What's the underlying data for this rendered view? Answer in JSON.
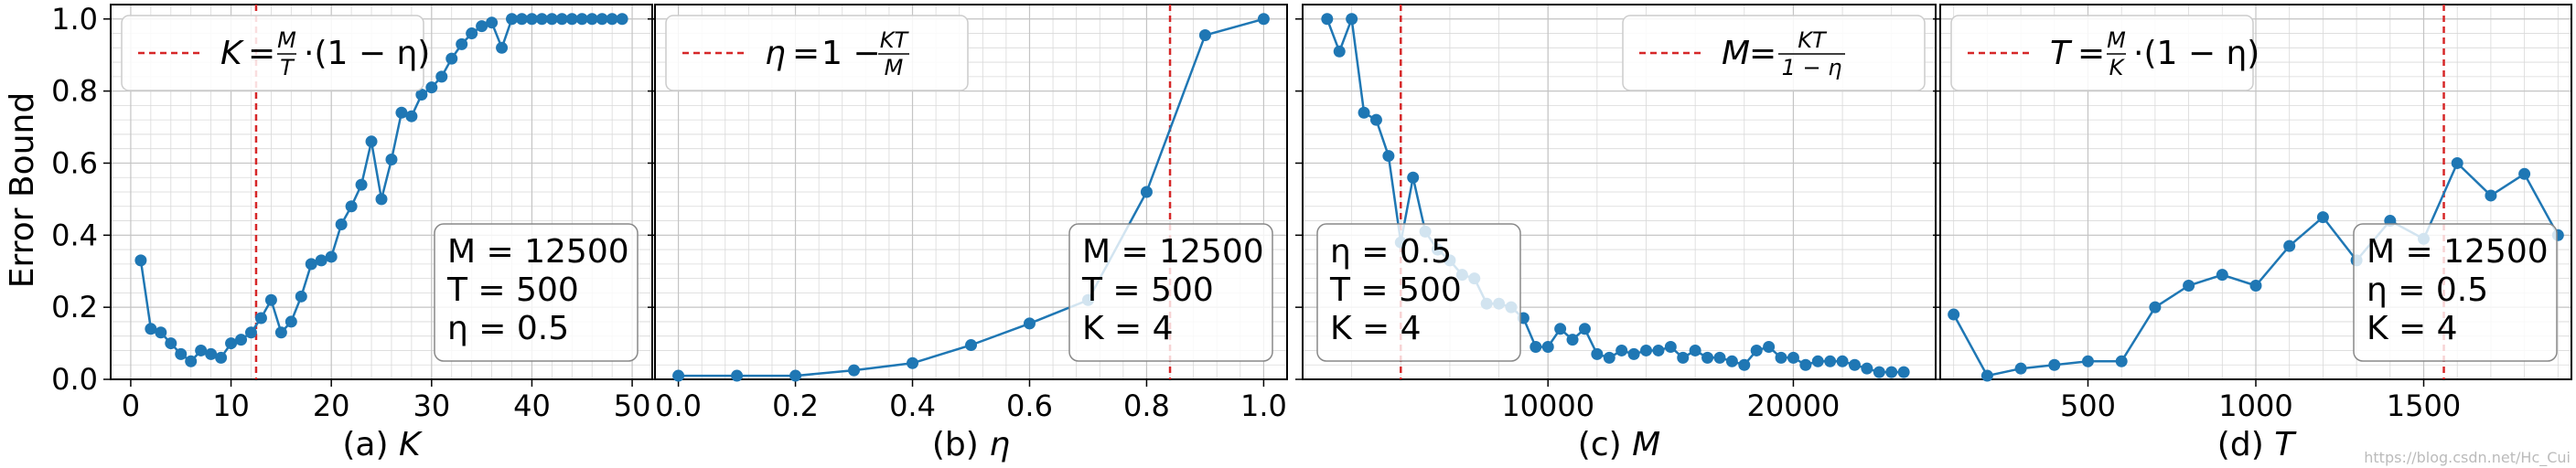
{
  "ylabel": "Error Bound",
  "watermark": "https://blog.csdn.net/Hc_Cui",
  "colors": {
    "line": "#1f77b4",
    "marker": "#1f77b4",
    "marker_alt": "#8fb9dd",
    "ref": "#d62728",
    "grid": "#d9d9d9",
    "axes": "#000000"
  },
  "chart_data": [
    {
      "type": "line",
      "xlabel_prefix": "(a)",
      "xlabel_var": "K",
      "xlim": [
        -2,
        52
      ],
      "ylim": [
        0,
        1.04
      ],
      "xticks": [
        0,
        10,
        20,
        30,
        40,
        50
      ],
      "yticks": [
        0.0,
        0.2,
        0.4,
        0.6,
        0.8,
        1.0
      ],
      "ytick_labels": [
        "0.0",
        "0.2",
        "0.4",
        "0.6",
        "0.8",
        "1.0"
      ],
      "vline": 12.5,
      "legend": {
        "position": "top-left",
        "lhs": "K",
        "rhs_before": "·(1 − η)",
        "frac_num": "M",
        "frac_den": "T"
      },
      "textbox": {
        "position": "bottom-right",
        "lines": [
          "M = 12500",
          "T = 500",
          "η = 0.5"
        ]
      },
      "x": [
        1,
        2,
        3,
        4,
        5,
        6,
        7,
        8,
        9,
        10,
        11,
        12,
        13,
        14,
        15,
        16,
        17,
        18,
        19,
        20,
        21,
        22,
        23,
        24,
        25,
        26,
        27,
        28,
        29,
        30,
        31,
        32,
        33,
        34,
        35,
        36,
        37,
        38,
        39,
        40,
        41,
        42,
        43,
        44,
        45,
        46,
        47,
        48,
        49
      ],
      "y": [
        0.33,
        0.14,
        0.13,
        0.1,
        0.07,
        0.05,
        0.08,
        0.07,
        0.06,
        0.1,
        0.11,
        0.13,
        0.17,
        0.22,
        0.13,
        0.16,
        0.23,
        0.32,
        0.33,
        0.34,
        0.43,
        0.48,
        0.54,
        0.66,
        0.5,
        0.61,
        0.74,
        0.73,
        0.79,
        0.81,
        0.84,
        0.89,
        0.93,
        0.96,
        0.98,
        0.99,
        0.92,
        1.0,
        1.0,
        1.0,
        1.0,
        1.0,
        1.0,
        1.0,
        1.0,
        1.0,
        1.0,
        1.0,
        1.0
      ]
    },
    {
      "type": "line",
      "xlabel_prefix": "(b)",
      "xlabel_var": "η",
      "xlim": [
        -0.04,
        1.04
      ],
      "ylim": [
        0,
        1.04
      ],
      "xticks": [
        0.0,
        0.2,
        0.4,
        0.6,
        0.8,
        1.0
      ],
      "xtick_labels": [
        "0.0",
        "0.2",
        "0.4",
        "0.6",
        "0.8",
        "1.0"
      ],
      "yticks": [
        0.0,
        0.2,
        0.4,
        0.6,
        0.8,
        1.0
      ],
      "vline": 0.84,
      "legend": {
        "position": "top-left",
        "lhs": "η",
        "rhs_before": "1 −",
        "frac_num": "KT",
        "frac_den": "M"
      },
      "textbox": {
        "position": "bottom-right",
        "lines": [
          "M = 12500",
          "T = 500",
          "K = 4"
        ]
      },
      "x": [
        0.0,
        0.1,
        0.2,
        0.3,
        0.4,
        0.5,
        0.6,
        0.7,
        0.8,
        0.9,
        1.0
      ],
      "y": [
        0.01,
        0.01,
        0.01,
        0.025,
        0.045,
        0.095,
        0.155,
        0.22,
        0.52,
        0.955,
        1.0
      ]
    },
    {
      "type": "line",
      "xlabel_prefix": "(c)",
      "xlabel_var": "M",
      "xlim": [
        0,
        25800
      ],
      "ylim": [
        0,
        1.04
      ],
      "xticks": [
        10000,
        20000
      ],
      "xtick_labels": [
        "10000",
        "20000"
      ],
      "yticks": [
        0.0,
        0.2,
        0.4,
        0.6,
        0.8,
        1.0
      ],
      "vline": 4000,
      "legend": {
        "position": "top-right",
        "lhs": "M",
        "rhs_before": "",
        "frac_num": "KT",
        "frac_den": "1 − η"
      },
      "textbox": {
        "position": "bottom-left",
        "lines": [
          "η = 0.5",
          "T = 500",
          "K = 4"
        ]
      },
      "x": [
        1000,
        1500,
        2000,
        2500,
        3000,
        3500,
        4000,
        4500,
        5000,
        5500,
        6000,
        6500,
        7000,
        7500,
        8000,
        8500,
        9000,
        9500,
        10000,
        10500,
        11000,
        11500,
        12000,
        12500,
        13000,
        13500,
        14000,
        14500,
        15000,
        15500,
        16000,
        16500,
        17000,
        17500,
        18000,
        18500,
        19000,
        19500,
        20000,
        20500,
        21000,
        21500,
        22000,
        22500,
        23000,
        23500,
        24000,
        24500
      ],
      "y": [
        1.0,
        0.91,
        1.0,
        0.74,
        0.72,
        0.62,
        0.38,
        0.56,
        0.41,
        0.36,
        0.33,
        0.29,
        0.28,
        0.21,
        0.21,
        0.2,
        0.17,
        0.09,
        0.09,
        0.14,
        0.11,
        0.14,
        0.07,
        0.06,
        0.08,
        0.07,
        0.08,
        0.08,
        0.09,
        0.06,
        0.08,
        0.06,
        0.06,
        0.05,
        0.04,
        0.08,
        0.09,
        0.06,
        0.06,
        0.04,
        0.05,
        0.05,
        0.05,
        0.04,
        0.03,
        0.02,
        0.02,
        0.02
      ]
    },
    {
      "type": "line",
      "xlabel_prefix": "(d)",
      "xlabel_var": "T",
      "xlim": [
        60,
        1940
      ],
      "ylim": [
        0,
        1.04
      ],
      "xticks": [
        500,
        1000,
        1500
      ],
      "xtick_labels": [
        "500",
        "1000",
        "1500"
      ],
      "yticks": [
        0.0,
        0.2,
        0.4,
        0.6,
        0.8,
        1.0
      ],
      "vline": 1560,
      "legend": {
        "position": "top-left",
        "lhs": "T",
        "rhs_before": "·(1 − η)",
        "frac_num": "M",
        "frac_den": "K"
      },
      "textbox": {
        "position": "bottom-right",
        "lines": [
          "M = 12500",
          "η = 0.5",
          "K = 4"
        ]
      },
      "x": [
        100,
        200,
        300,
        400,
        500,
        600,
        700,
        800,
        900,
        1000,
        1100,
        1200,
        1300,
        1400,
        1500,
        1600,
        1700,
        1800,
        1900
      ],
      "y": [
        0.18,
        0.01,
        0.03,
        0.04,
        0.05,
        0.05,
        0.2,
        0.26,
        0.29,
        0.26,
        0.37,
        0.45,
        0.33,
        0.44,
        0.39,
        0.6,
        0.51,
        0.57,
        0.4
      ]
    }
  ]
}
